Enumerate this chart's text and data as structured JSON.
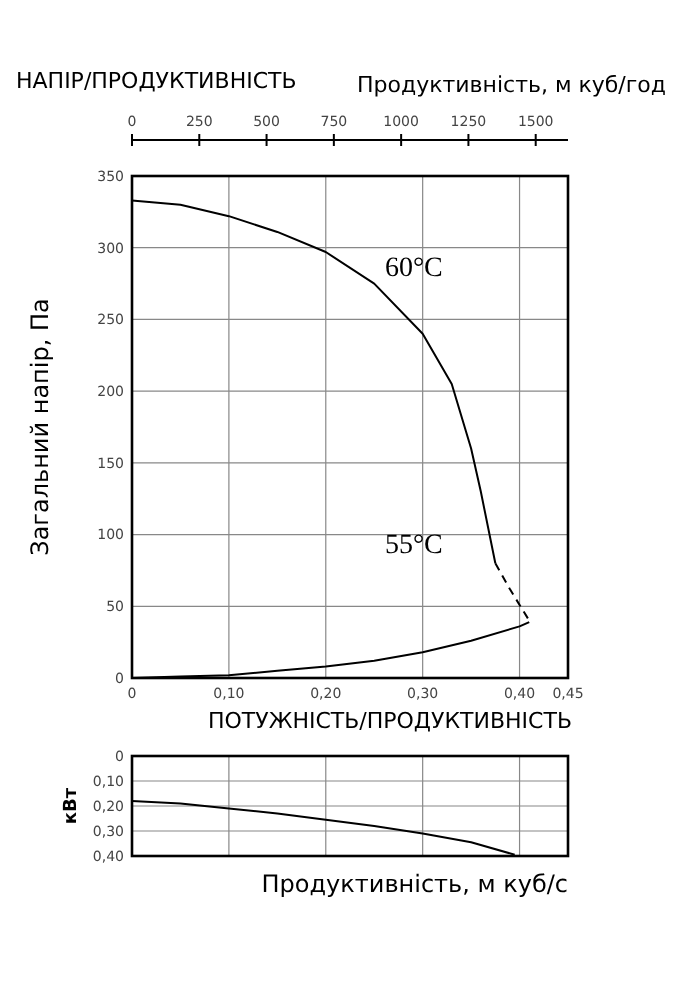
{
  "chart_data": [
    {
      "type": "line",
      "title": "НАПІР/ПРОДУКТИВНІСТЬ",
      "x2label": "Продуктивність, м куб/год",
      "ylabel": "Загальний напір, Па",
      "xlim": [
        0,
        0.45
      ],
      "xticks": [
        0,
        {
          "value": 0.1,
          "label": "0,10"
        },
        {
          "value": 0.2,
          "label": "0,20"
        },
        {
          "value": 0.3,
          "label": "0,30"
        },
        {
          "value": 0.4,
          "label": "0,40"
        },
        {
          "value": 0.45,
          "label": "0,45"
        }
      ],
      "x2lim": [
        0,
        1620
      ],
      "x2ticks": [
        0,
        250,
        500,
        750,
        1000,
        1250,
        1500
      ],
      "ylim": [
        0,
        350
      ],
      "yticks": [
        0,
        50,
        100,
        150,
        200,
        250,
        300,
        350
      ],
      "grid": true,
      "marker": "none",
      "series": [
        {
          "color": "#000000",
          "line_style": "solid",
          "x": [
            0,
            0.05,
            0.1,
            0.15,
            0.2,
            0.25,
            0.3,
            0.33,
            0.35,
            0.36,
            0.375
          ],
          "values": [
            333,
            330,
            322,
            311,
            297,
            275,
            240,
            205,
            160,
            130,
            80
          ]
        },
        {
          "color": "#000000",
          "line_style": "dashed",
          "x": [
            0.375,
            0.39,
            0.41
          ],
          "values": [
            80,
            62,
            40
          ]
        },
        {
          "color": "#000000",
          "line_style": "solid",
          "x": [
            0,
            0.05,
            0.1,
            0.15,
            0.2,
            0.25,
            0.3,
            0.35,
            0.4,
            0.41
          ],
          "values": [
            0,
            1,
            2,
            5,
            8,
            12,
            18,
            26,
            36,
            39
          ]
        }
      ],
      "annotations": [
        "60°C",
        "55°C"
      ]
    },
    {
      "type": "line",
      "title": "ПОТУЖНІСТЬ/ПРОДУКТИВНІСТЬ",
      "xlabel": "Продуктивність, м куб/с",
      "ylabel": "кВт",
      "xlim": [
        0,
        0.45
      ],
      "xticks": [
        {
          "value": 0.1,
          "label": null
        },
        {
          "value": 0.2,
          "label": null
        },
        {
          "value": 0.3,
          "label": null
        },
        {
          "value": 0.4,
          "label": null
        }
      ],
      "ylim": [
        0.4,
        0
      ],
      "yticks": [
        0,
        {
          "value": 0.1,
          "label": "0,10"
        },
        {
          "value": 0.2,
          "label": "0,20"
        },
        {
          "value": 0.3,
          "label": "0,30"
        },
        {
          "value": 0.4,
          "label": "0,40"
        }
      ],
      "grid": true,
      "tick_labels": "y",
      "marker": "none",
      "series": [
        {
          "color": "#000000",
          "line_style": "solid",
          "x": [
            0,
            0.05,
            0.1,
            0.15,
            0.2,
            0.25,
            0.3,
            0.35,
            0.395
          ],
          "values": [
            0.18,
            0.19,
            0.21,
            0.23,
            0.255,
            0.28,
            0.31,
            0.345,
            0.395
          ]
        }
      ]
    }
  ]
}
